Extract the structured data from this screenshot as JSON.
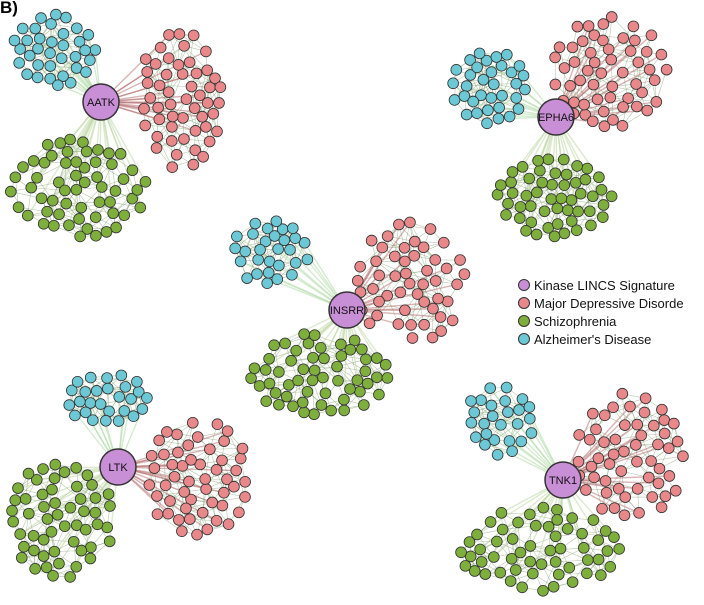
{
  "panel_label": "B)",
  "colors": {
    "kinase": "#c98fd6",
    "mdd": "#e8888a",
    "scz": "#7eae3c",
    "ad": "#6cc8d4",
    "node_border": "#333333",
    "edge_ad": "#a9d8a0",
    "edge_scz": "#b9d49d",
    "edge_mdd": "#b46a6a",
    "edge_intra": "#7c9a6a"
  },
  "legend": {
    "items": [
      {
        "label": "Kinase LINCS Signature",
        "color_key": "kinase"
      },
      {
        "label": "Major Depressive Disorde",
        "color_key": "mdd"
      },
      {
        "label": "Schizophrenia",
        "color_key": "scz"
      },
      {
        "label": "Alzheimer's Disease",
        "color_key": "ad"
      }
    ]
  },
  "networks": [
    {
      "hub": "AATK"
    },
    {
      "hub": "EPHA6"
    },
    {
      "hub": "INSRR"
    },
    {
      "hub": "LTK"
    },
    {
      "hub": "TNK1"
    }
  ]
}
